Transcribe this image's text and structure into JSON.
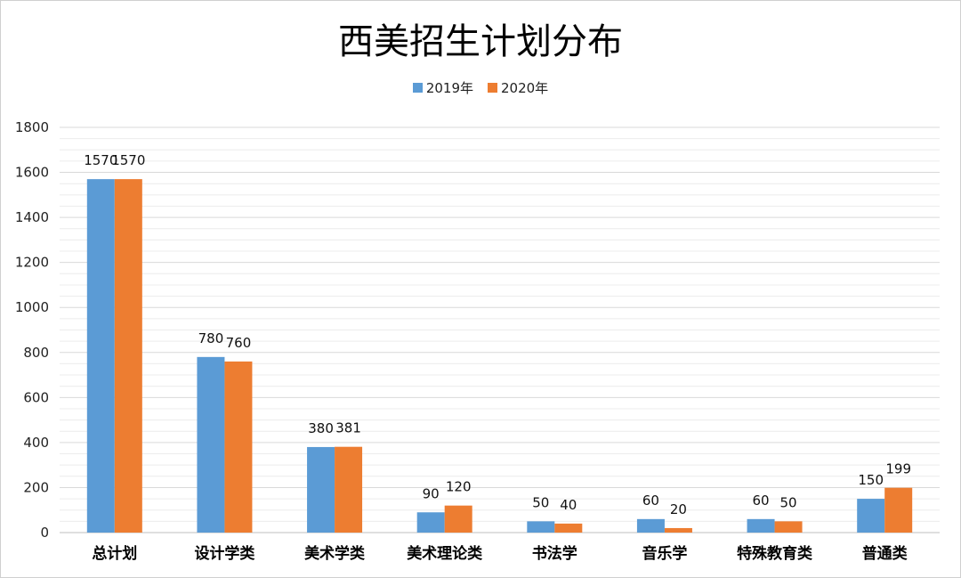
{
  "chart_data": {
    "type": "bar",
    "title": "西美招生计划分布",
    "categories": [
      "总计划",
      "设计学类",
      "美术学类",
      "美术理论类",
      "书法学",
      "音乐学",
      "特殊教育类",
      "普通类"
    ],
    "series": [
      {
        "name": "2019年",
        "color": "#5b9bd5",
        "values": [
          1570,
          780,
          380,
          90,
          50,
          60,
          60,
          150
        ]
      },
      {
        "name": "2020年",
        "color": "#ed7d31",
        "values": [
          1570,
          760,
          381,
          120,
          40,
          20,
          50,
          199
        ]
      }
    ],
    "ylim": [
      0,
      1800
    ],
    "yticks": [
      0,
      200,
      400,
      600,
      800,
      1000,
      1200,
      1400,
      1600,
      1800
    ],
    "grid": true,
    "legend_position": "top"
  }
}
